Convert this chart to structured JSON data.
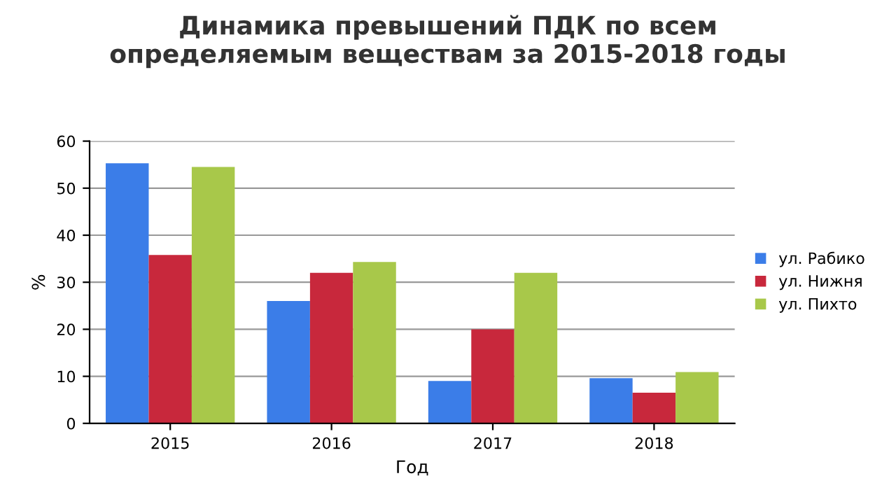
{
  "chart_data": {
    "type": "bar",
    "title": "Динамика превышений ПДК по всем\nопределяемым веществам за 2015-2018 годы",
    "xlabel": "Год",
    "ylabel": "%",
    "categories": [
      "2015",
      "2016",
      "2017",
      "2018"
    ],
    "series": [
      {
        "name": "ул. Рабико",
        "color": "#3b7de8",
        "values": [
          55.3,
          26,
          9,
          9.6
        ]
      },
      {
        "name": "ул. Нижня",
        "color": "#c8283c",
        "values": [
          35.8,
          32,
          20,
          6.5
        ]
      },
      {
        "name": "ул. Пихто",
        "color": "#a8c84a",
        "values": [
          54.5,
          34.3,
          32,
          10.9
        ]
      }
    ],
    "ylim": [
      0,
      60
    ],
    "yticks": [
      0,
      10,
      20,
      30,
      40,
      50,
      60
    ],
    "grid": "y",
    "legend": "right"
  }
}
